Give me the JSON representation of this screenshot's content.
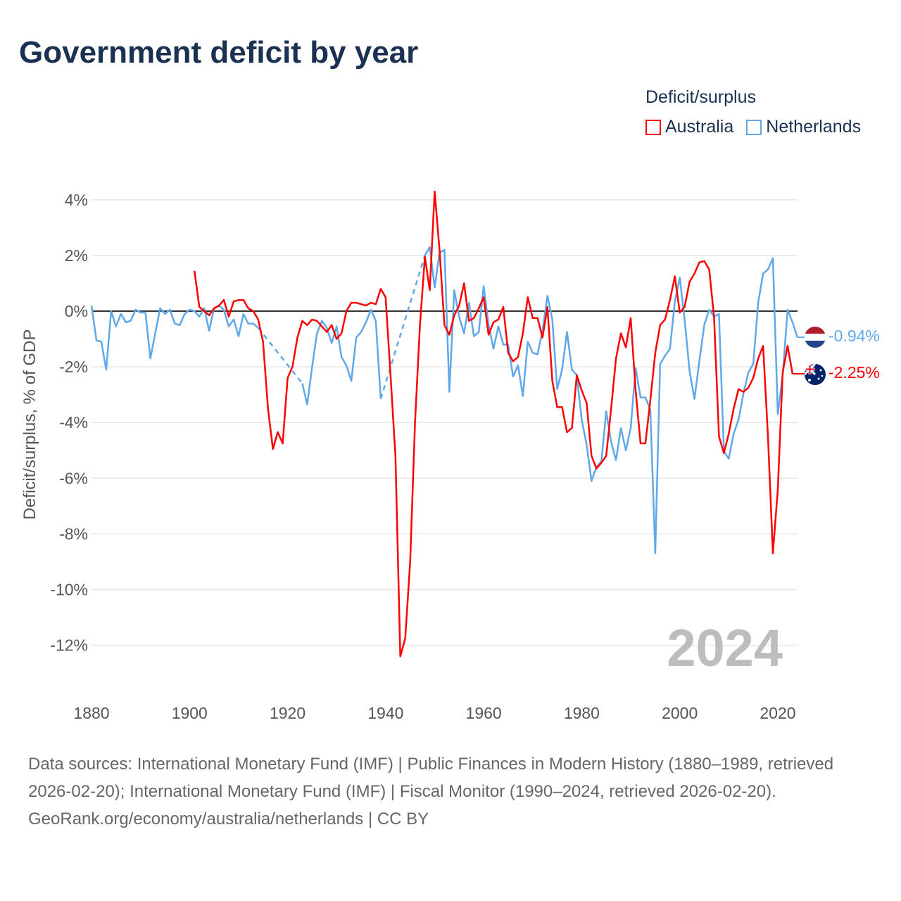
{
  "title": "Government deficit by year",
  "footer": {
    "sources": "Data sources: International Monetary Fund (IMF) | Public Finances in Modern History (1880–1989, retrieved 2026-02-20); International Monetary Fund (IMF) | Fiscal Monitor (1990–2024, retrieved 2026-02-20).",
    "credit": "GeoRank.org/economy/australia/netherlands | CC BY"
  },
  "chart_data": {
    "type": "line",
    "title": "Government deficit by year",
    "legend_title": "Deficit/surplus",
    "legend_placement": "top-right",
    "ylabel": "Deficit/surplus, % of GDP",
    "xlabel": "",
    "xlim": [
      1880,
      2024
    ],
    "ylim": [
      -13,
      4.5
    ],
    "xticks": [
      1880,
      1900,
      1920,
      1940,
      1960,
      1980,
      2000,
      2020
    ],
    "yticks": [
      4,
      2,
      0,
      -2,
      -4,
      -6,
      -8,
      -10,
      -12
    ],
    "ytick_labels": [
      "4%",
      "2%",
      "0%",
      "-2%",
      "-4%",
      "-6%",
      "-8%",
      "-10%",
      "-12%"
    ],
    "year_label": "2024",
    "series": [
      {
        "name": "Australia",
        "color": "#ff0000",
        "end_label": "-2.25%",
        "flag": "australia-flag",
        "start": 1901,
        "values": [
          1.45,
          0.15,
          0.0,
          -0.15,
          0.1,
          0.2,
          0.4,
          -0.2,
          0.35,
          0.4,
          0.4,
          0.1,
          0.0,
          -0.3,
          -1.1,
          -3.5,
          -4.95,
          -4.35,
          -4.75,
          -2.4,
          -2.0,
          -0.95,
          -0.35,
          -0.5,
          -0.3,
          -0.35,
          -0.55,
          -0.75,
          -0.5,
          -1.0,
          -0.8,
          0.0,
          0.3,
          0.3,
          0.25,
          0.2,
          0.3,
          0.25,
          0.8,
          0.5,
          -2.3,
          -5.2,
          -12.4,
          -11.75,
          -9.0,
          -4.0,
          -0.5,
          1.95,
          0.75,
          4.3,
          2.2,
          -0.5,
          -0.85,
          -0.15,
          0.2,
          1.0,
          -0.35,
          -0.25,
          0.1,
          0.5,
          -0.85,
          -0.4,
          -0.3,
          0.15,
          -1.5,
          -1.8,
          -1.65,
          -0.8,
          0.5,
          -0.25,
          -0.25,
          -0.95,
          0.15,
          -2.5,
          -3.45,
          -3.45,
          -4.35,
          -4.2,
          -2.3,
          -2.85,
          -3.3,
          -5.2,
          -5.65,
          -5.45,
          -5.2,
          -3.5,
          -1.7,
          -0.8,
          -1.3,
          -0.25,
          -2.85,
          -4.75,
          -4.75,
          -3.2,
          -1.5,
          -0.5,
          -0.3,
          0.4,
          1.25,
          -0.05,
          0.15,
          1.05,
          1.35,
          1.75,
          1.8,
          1.5,
          -0.2,
          -4.5,
          -5.1,
          -4.4,
          -3.5,
          -2.8,
          -2.9,
          -2.75,
          -2.4,
          -1.7,
          -1.25,
          -4.5,
          -8.7,
          -6.4,
          -2.2,
          -1.25,
          -2.25
        ]
      },
      {
        "name": "Netherlands",
        "color": "#5fa8ea",
        "end_label": "-0.94%",
        "flag": "netherlands-flag",
        "start": 1880,
        "values": [
          0.2,
          -1.05,
          -1.1,
          -2.1,
          0.0,
          -0.55,
          -0.1,
          -0.4,
          -0.35,
          0.05,
          -0.05,
          -0.05,
          -1.7,
          -0.8,
          0.1,
          -0.1,
          0.05,
          -0.45,
          -0.5,
          -0.1,
          0.05,
          0.0,
          -0.2,
          0.1,
          -0.7,
          0.1,
          0.2,
          0.05,
          -0.55,
          -0.3,
          -0.9,
          -0.1,
          -0.45,
          -0.45,
          -0.6,
          null,
          null,
          null,
          null,
          null,
          null,
          null,
          null,
          -2.6,
          -3.35,
          -2.0,
          -0.8,
          -0.35,
          -0.6,
          -1.15,
          -0.55,
          -1.65,
          -1.95,
          -2.5,
          -0.95,
          -0.75,
          -0.4,
          0.05,
          -0.35,
          -3.15,
          null,
          null,
          null,
          null,
          null,
          null,
          null,
          null,
          2.0,
          2.3,
          0.85,
          2.1,
          2.2,
          -2.9,
          0.75,
          -0.2,
          -0.8,
          0.3,
          -0.9,
          -0.75,
          0.9,
          -0.5,
          -1.35,
          -0.55,
          -1.2,
          -1.2,
          -2.35,
          -1.95,
          -3.05,
          -1.1,
          -1.5,
          -1.55,
          -0.7,
          0.55,
          -0.3,
          -2.8,
          -2.1,
          -0.75,
          -2.1,
          -2.3,
          -3.9,
          -4.8,
          -6.1,
          -5.6,
          -5.4,
          -3.6,
          -4.7,
          -5.35,
          -4.2,
          -5.0,
          -4.2,
          -2.05,
          -3.1,
          -3.1,
          -3.55,
          -8.7,
          -1.9,
          -1.6,
          -1.35,
          0.35,
          1.2,
          -0.3,
          -2.15,
          -3.15,
          -1.8,
          -0.5,
          0.05,
          -0.2,
          -0.1,
          -5.05,
          -5.3,
          -4.4,
          -3.9,
          -2.95,
          -2.2,
          -1.9,
          0.3,
          1.35,
          1.5,
          1.9,
          -3.7,
          -2.3,
          0.05,
          -0.4,
          -0.94
        ]
      }
    ]
  }
}
